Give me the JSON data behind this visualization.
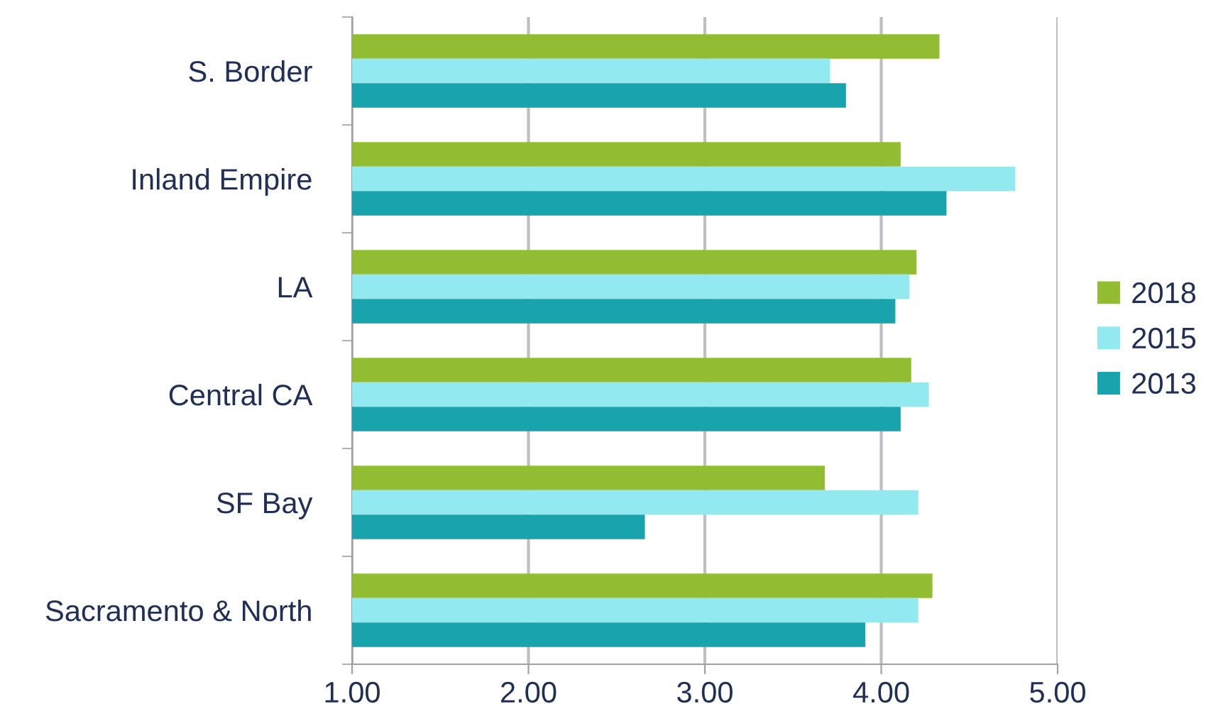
{
  "chart_data": {
    "type": "bar",
    "orientation": "horizontal",
    "categories": [
      "S. Border",
      "Inland Empire",
      "LA",
      "Central CA",
      "SF Bay",
      "Sacramento & North"
    ],
    "series": [
      {
        "name": "2018",
        "color": "#92bd33",
        "values": [
          4.33,
          4.11,
          4.2,
          4.17,
          3.68,
          4.29
        ]
      },
      {
        "name": "2015",
        "color": "#92eaf0",
        "values": [
          3.71,
          4.76,
          4.16,
          4.27,
          4.21,
          4.21
        ]
      },
      {
        "name": "2013",
        "color": "#19a3ad",
        "values": [
          3.8,
          4.37,
          4.08,
          4.11,
          2.66,
          3.91
        ]
      }
    ],
    "xlim": [
      1,
      5
    ],
    "xticks": [
      {
        "value": 1,
        "label": "1.00"
      },
      {
        "value": 2,
        "label": "2.00"
      },
      {
        "value": 3,
        "label": "3.00"
      },
      {
        "value": 4,
        "label": "4.00"
      },
      {
        "value": 5,
        "label": "5.00"
      }
    ],
    "grid": "x",
    "legend": "right"
  }
}
